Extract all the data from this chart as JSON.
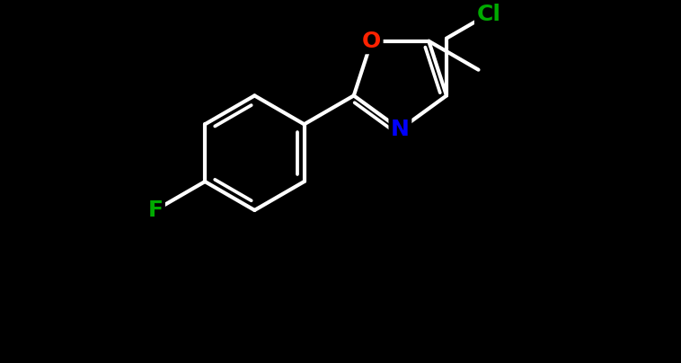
{
  "background_color": "#000000",
  "bond_color": "#ffffff",
  "bond_width": 3.0,
  "atoms": {
    "N": {
      "color": "#0000ff",
      "fontsize": 18,
      "fontweight": "bold"
    },
    "O": {
      "color": "#ff2200",
      "fontsize": 18,
      "fontweight": "bold"
    },
    "F": {
      "color": "#00aa00",
      "fontsize": 18,
      "fontweight": "bold"
    },
    "Cl": {
      "color": "#00aa00",
      "fontsize": 18,
      "fontweight": "bold"
    }
  },
  "figsize": [
    7.58,
    4.04
  ],
  "dpi": 100
}
